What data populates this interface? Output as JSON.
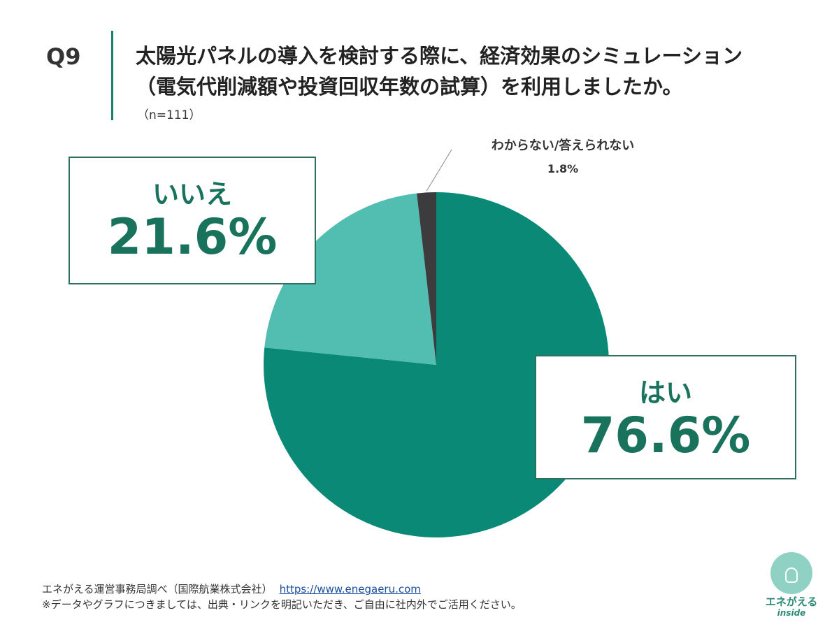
{
  "question": {
    "number": "Q9",
    "line1": "太陽光パネルの導入を検討する際に、経済効果のシミュレーション",
    "line2": "（電気代削減額や投資回収年数の試算）を利用しましたか。",
    "sample": "（n=111）"
  },
  "chart_data": {
    "type": "pie",
    "slices": [
      {
        "label": "はい",
        "value": 76.6,
        "display": "76.6%",
        "color": "#0a8a76"
      },
      {
        "label": "いいえ",
        "value": 21.6,
        "display": "21.6%",
        "color": "#52bdb1"
      },
      {
        "label": "わからない/答えられない",
        "value": 1.8,
        "display": "1.8%",
        "color": "#3c3c3e"
      }
    ],
    "start": "12 o'clock",
    "direction": "clockwise"
  },
  "footer": {
    "source": "エネがえる運営事務局調べ（国際航業株式会社）",
    "url": "https://www.enegaeru.com",
    "note": "※データやグラフにつきましては、出典・リンクを明記いただき、ご自由に社内外でご活用ください。"
  },
  "logo": {
    "name": "エネがえる",
    "sub": "inside"
  }
}
